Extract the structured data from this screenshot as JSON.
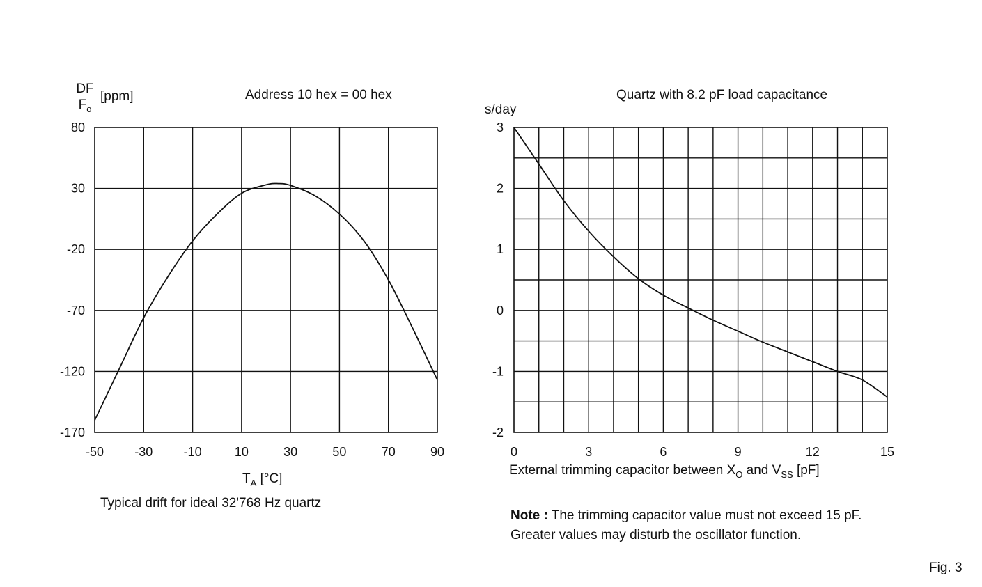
{
  "figure_label": "Fig. 3",
  "chart_data": [
    {
      "type": "line",
      "title": "Address 10 hex = 00 hex",
      "ylabel_num": "DF",
      "ylabel_den": "F",
      "ylabel_den_sub": "o",
      "ylabel_unit": "[ppm]",
      "xlabel_main": "T",
      "xlabel_sub": "A",
      "xlabel_unit": "[°C]",
      "caption": "Typical drift for ideal 32'768 Hz quartz",
      "xlim": [
        -50,
        90
      ],
      "ylim": [
        -170,
        80
      ],
      "x_ticks": [
        -50,
        -30,
        -10,
        10,
        30,
        50,
        70,
        90
      ],
      "y_ticks": [
        80,
        30,
        -20,
        -70,
        -120,
        -170
      ],
      "grid": true,
      "x": [
        -50,
        -40,
        -30,
        -20,
        -10,
        0,
        10,
        20,
        25,
        30,
        40,
        50,
        60,
        70,
        80,
        90
      ],
      "values": [
        -160,
        -118,
        -76,
        -42,
        -13,
        9,
        26,
        33,
        34,
        32.5,
        24,
        9,
        -13,
        -45,
        -85,
        -127
      ]
    },
    {
      "type": "line",
      "title": "Quartz with 8.2 pF load capacitance",
      "ylabel": "s/day",
      "xlabel_pre": "External trimming capacitor between X",
      "xlabel_sub1": "O",
      "xlabel_mid": " and V",
      "xlabel_sub2": "SS",
      "xlabel_post": " [pF]",
      "xlim": [
        0,
        15
      ],
      "ylim": [
        -2,
        3
      ],
      "x_ticks": [
        0,
        3,
        6,
        9,
        12,
        15
      ],
      "y_ticks": [
        3,
        2,
        1,
        0,
        -1,
        -2
      ],
      "grid": true,
      "x": [
        0,
        1,
        2,
        3,
        4,
        5,
        6,
        7,
        8,
        9,
        10,
        11,
        12,
        13,
        14,
        15
      ],
      "values": [
        3.0,
        2.4,
        1.8,
        1.3,
        0.88,
        0.52,
        0.25,
        0.04,
        -0.16,
        -0.34,
        -0.52,
        -0.68,
        -0.84,
        -1.0,
        -1.14,
        -1.42
      ]
    }
  ],
  "note": {
    "bold": "Note :",
    "line1": " The trimming capacitor value must not exceed 15 pF.",
    "line2": "Greater values may disturb the oscillator function."
  }
}
